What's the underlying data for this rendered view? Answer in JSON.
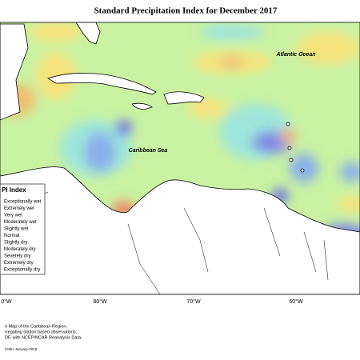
{
  "title": "Standard Precipitation Index for December 2017",
  "labels": {
    "ocean": "Atlantic Ocean",
    "sea": "Caribbean Sea"
  },
  "legend": {
    "title": "PI Index",
    "items": [
      "Exceptionally wet",
      "Extremely wet",
      "Very wet",
      "Moderately wet",
      "Slightly wet",
      "Normal",
      "Slightly dry",
      "Moderately dry",
      "Severely dry",
      "Extremely dry",
      "Exceptionally dry"
    ]
  },
  "longitudes": [
    "0°W",
    "80°W",
    "70°W",
    "60°W"
  ],
  "notes": [
    "n Map of the Caribbean Region.",
    "rregating station based observations,",
    "DF, with NCEP/NCAR Reanalysis Data."
  ],
  "credit": "CIMH January-2018"
}
